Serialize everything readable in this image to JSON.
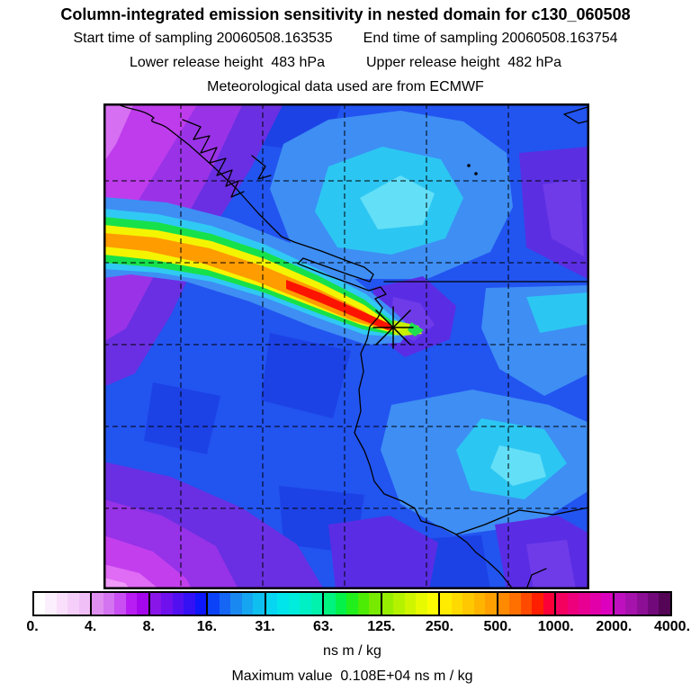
{
  "header": {
    "title": "Column-integrated emission sensitivity in nested domain for c130_060508",
    "start_text": "Start time of sampling 20060508.163535",
    "end_text": "End time of sampling 20060508.163754",
    "lower_text": "Lower release height  483 hPa",
    "upper_text": "Upper release height  482 hPa",
    "met_text": "Meteorological data used are from ECMWF"
  },
  "colorbar": {
    "ticks": [
      "0.",
      "4.",
      "8.",
      "16.",
      "31.",
      "63.",
      "125.",
      "250.",
      "500.",
      "1000.",
      "2000.",
      "4000."
    ],
    "units": "ns m / kg",
    "cells": [
      [
        "#FFFFFF",
        "#FCEFFD",
        "#F9DFFB",
        "#F5CFF9",
        "#F1BFF7"
      ],
      [
        "#DE8FF0",
        "#D474F1",
        "#C94FF2",
        "#B81EF3",
        "#A507EC"
      ],
      [
        "#8A15E9",
        "#6F10ED",
        "#5210F1",
        "#3410F5",
        "#0D17FA"
      ],
      [
        "#0B42F8",
        "#1566F4",
        "#1A88F1",
        "#16A5F0",
        "#0FBFF0"
      ],
      [
        "#06D6F2",
        "#00E4EC",
        "#00ECDC",
        "#00F0C6",
        "#00F2AC"
      ],
      [
        "#00F27F",
        "#04F14A",
        "#20EF1C",
        "#4CEC04",
        "#78EA00"
      ],
      [
        "#97EE00",
        "#B4F200",
        "#CFF600",
        "#E8FA00",
        "#FDFD00"
      ],
      [
        "#FFEC00",
        "#FFDA00",
        "#FFC800",
        "#FFB400",
        "#FFA000"
      ],
      [
        "#FF8A00",
        "#FF7000",
        "#FF4A00",
        "#FF1E00",
        "#FB0038"
      ],
      [
        "#F4005F",
        "#EE007C",
        "#E80093",
        "#E200A9",
        "#DC00BE"
      ],
      [
        "#BE10BE",
        "#A512AC",
        "#8C0F95",
        "#72097B",
        "#540556"
      ]
    ]
  },
  "footer": {
    "max_text": "Maximum value  0.108E+04 ns m / kg"
  },
  "chart_data": {
    "type": "heatmap",
    "title": "Column-integrated emission sensitivity in nested domain for c130_060508",
    "subtitle_lines": [
      "Start time of sampling 20060508.163535    End time of sampling 20060508.163754",
      "Lower release height  483 hPa      Upper release height  482 hPa",
      "Meteorological data used are from ECMWF"
    ],
    "units": "ns m / kg",
    "colorbar_levels": [
      0,
      4,
      8,
      16,
      31,
      63,
      125,
      250,
      500,
      1000,
      2000,
      4000
    ],
    "maximum_value": "0.108E+04 ns m / kg",
    "legend_position": "bottom",
    "grid": "5x5 dashed lat-lon gridlines over square nested domain",
    "palette": {
      "background_ocean_blue": "#2254F0",
      "low_value_purple": "#9A33E7",
      "lowest_value_pink": "#F09AF9",
      "moderate_cyan": "#2CC6F2",
      "plume_yellow": "#F4F400",
      "plume_orange": "#FF9C00",
      "plume_red_core": "#FC1400"
    },
    "features": [
      "High-sensitivity plume (yellow/orange/red core, ~250-1000+ ns m/kg) extends west-northwest from the release point to the left edge of the domain",
      "Release/receptor point marked with a black asterisk on the coast at about 60% across, 46% down the map",
      "Background field 8-63 ns m/kg (blues and cyans) over most of the domain with cyan maxima northeast and southeast of the receptor",
      "Lowest sensitivities (<8 ns m/kg, purple to pale pink) in the northwest and southwest corners",
      "Black coastline of western North America with offshore islands in the northwest and a straight boundary line extending east from near the receptor"
    ]
  }
}
